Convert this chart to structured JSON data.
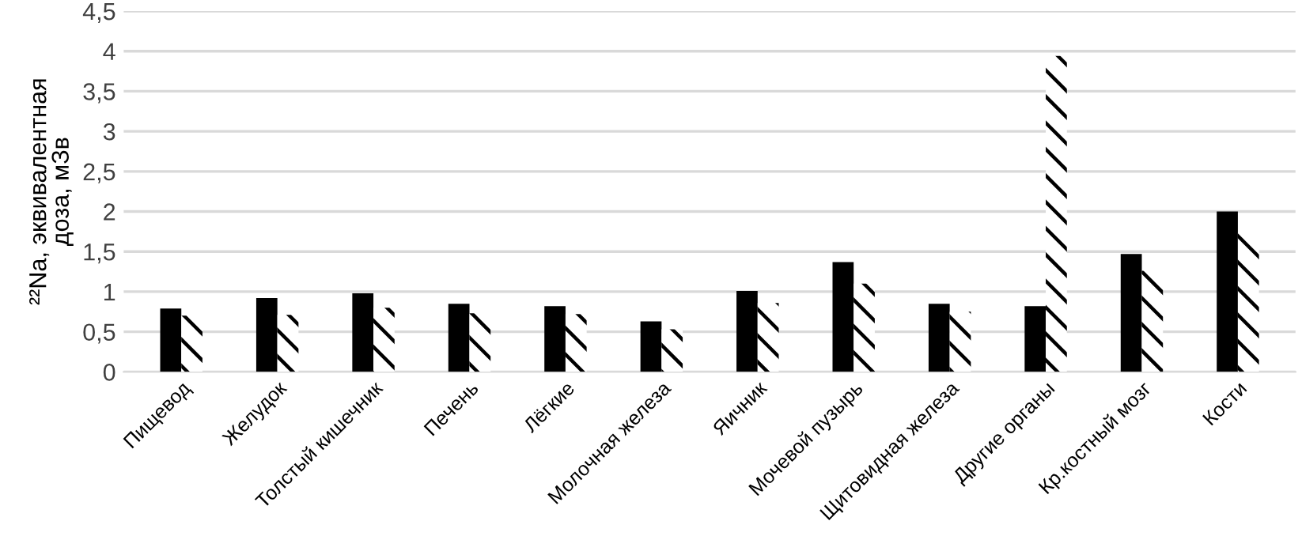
{
  "chart_data": {
    "type": "bar",
    "ylabel": "²²Na, эквивалентная\nдоза, мЗв",
    "categories": [
      "Пищевод",
      "Желудок",
      "Толстый кишечник",
      "Печень",
      "Лёгкие",
      "Молочная железа",
      "Яичник",
      "Мочевой пузырь",
      "Щитовидная железа",
      "Другие органы",
      "Кр.костный мозг",
      "Кости"
    ],
    "series": [
      {
        "color": "#000000",
        "values": [
          0.79,
          0.92,
          0.98,
          0.85,
          0.82,
          0.63,
          1.01,
          1.37,
          0.85,
          0.82,
          1.47,
          2.0
        ]
      },
      {
        "color": "#ffffff",
        "values": [
          0.7,
          0.71,
          0.8,
          0.73,
          0.72,
          0.53,
          0.86,
          1.1,
          0.75,
          3.94,
          1.26,
          1.73
        ]
      }
    ],
    "ylim": [
      0,
      4.5
    ],
    "yticks": [
      0,
      {
        "value": 0.5,
        "label": "0,5"
      },
      1,
      {
        "value": 1.5,
        "label": "1,5"
      },
      2,
      {
        "value": 2.5,
        "label": "2,5"
      },
      3,
      {
        "value": 3.5,
        "label": "3,5"
      },
      4,
      {
        "value": 4.5,
        "label": "4,5"
      }
    ],
    "grid": "y",
    "legend": false
  }
}
